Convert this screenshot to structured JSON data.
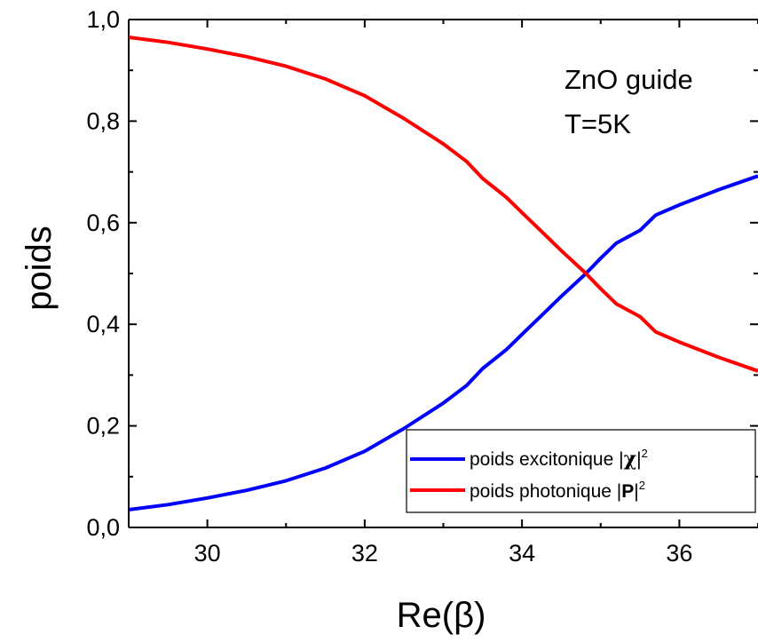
{
  "chart_data": {
    "type": "line",
    "title": "",
    "xlabel": "Re(β)",
    "ylabel": "poids",
    "xlim": [
      29,
      37
    ],
    "ylim": [
      0,
      1
    ],
    "x_ticks": [
      30,
      32,
      34,
      36
    ],
    "x_tick_labels": [
      "30",
      "32",
      "34",
      "36"
    ],
    "y_ticks": [
      0,
      0.2,
      0.4,
      0.6,
      0.8,
      1.0
    ],
    "y_tick_labels": [
      "0,0",
      "0,2",
      "0,4",
      "0,6",
      "0,8",
      "1,0"
    ],
    "grid": false,
    "legend_position": "bottom-right",
    "annotations": [
      "ZnO guide",
      "T=5K"
    ],
    "series": [
      {
        "name": "poids excitonique |χ|²",
        "legend_prefix": "poids excitonique |",
        "legend_symbol": "χ",
        "legend_suffix": "|",
        "legend_sup": "2",
        "color": "#0000ff",
        "x": [
          29.0,
          29.5,
          30.0,
          30.5,
          31.0,
          31.5,
          32.0,
          32.5,
          33.0,
          33.3,
          33.5,
          33.8,
          34.0,
          34.3,
          34.5,
          34.8,
          35.0,
          35.2,
          35.5,
          35.7,
          36.0,
          36.5,
          37.0
        ],
        "y": [
          0.035,
          0.045,
          0.058,
          0.073,
          0.092,
          0.117,
          0.15,
          0.195,
          0.245,
          0.28,
          0.313,
          0.35,
          0.38,
          0.425,
          0.455,
          0.498,
          0.53,
          0.56,
          0.585,
          0.615,
          0.635,
          0.665,
          0.692
        ]
      },
      {
        "name": "poids photonique |P|²",
        "legend_prefix": "poids photonique |",
        "legend_symbol": "P",
        "legend_suffix": "|",
        "legend_sup": "2",
        "color": "#ff0000",
        "x": [
          29.0,
          29.5,
          30.0,
          30.5,
          31.0,
          31.5,
          32.0,
          32.5,
          33.0,
          33.3,
          33.5,
          33.8,
          34.0,
          34.3,
          34.5,
          34.8,
          35.0,
          35.2,
          35.5,
          35.7,
          36.0,
          36.5,
          37.0
        ],
        "y": [
          0.965,
          0.955,
          0.942,
          0.927,
          0.908,
          0.883,
          0.85,
          0.805,
          0.755,
          0.72,
          0.687,
          0.65,
          0.62,
          0.575,
          0.545,
          0.502,
          0.47,
          0.44,
          0.415,
          0.385,
          0.365,
          0.335,
          0.308
        ]
      }
    ]
  }
}
